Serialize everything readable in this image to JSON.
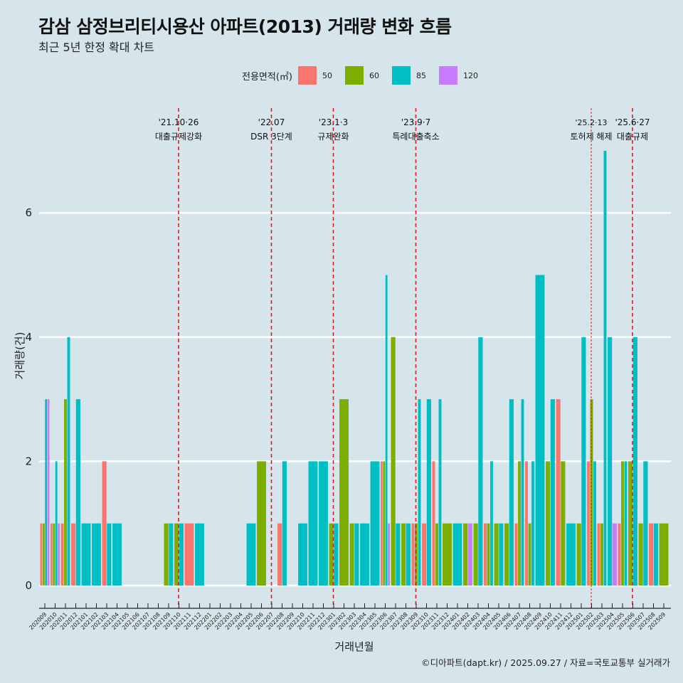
{
  "header": {
    "title": "감삼 삼정브리티시용산 아파트(2013) 거래량 변화 흐름",
    "subtitle": "최근 5년 한정 확대 차트"
  },
  "legend": {
    "title": "전용면적(㎡)",
    "items": [
      {
        "label": "50",
        "color": "#F8766D"
      },
      {
        "label": "60",
        "color": "#7CAE00"
      },
      {
        "label": "85",
        "color": "#00BFC4"
      },
      {
        "label": "120",
        "color": "#C77CFF"
      }
    ]
  },
  "footer": "©디아파트(dapt.kr) / 2025.09.27 / 자료=국토교통부 실거래가",
  "chart_data": {
    "type": "bar",
    "title": "감삼 삼정브리티시용산 아파트(2013) 거래량 변화 흐름",
    "subtitle": "최근 5년 한정 확대 차트",
    "xlabel": "거래년월",
    "ylabel": "거래량(건)",
    "ylim": [
      0,
      7.7
    ],
    "yticks": [
      0,
      2,
      4,
      6
    ],
    "grid": true,
    "legend_position": "top",
    "bar_mode": "dodge",
    "categories": [
      "202009",
      "202010",
      "202011",
      "202012",
      "202101",
      "202102",
      "202103",
      "202104",
      "202105",
      "202106",
      "202107",
      "202108",
      "202109",
      "202110",
      "202111",
      "202112",
      "202201",
      "202202",
      "202203",
      "202204",
      "202205",
      "202206",
      "202207",
      "202208",
      "202209",
      "202210",
      "202211",
      "202212",
      "202301",
      "202302",
      "202303",
      "202304",
      "202305",
      "202306",
      "202307",
      "202308",
      "202309",
      "202310",
      "202311",
      "202312",
      "202401",
      "202402",
      "202403",
      "202404",
      "202405",
      "202406",
      "202407",
      "202408",
      "202409",
      "202410",
      "202411",
      "202412",
      "202501",
      "202502",
      "202503",
      "202504",
      "202505",
      "202506",
      "202507",
      "202508",
      "202509"
    ],
    "series": [
      {
        "name": "50",
        "color": "#F8766D",
        "values": [
          1,
          1,
          1,
          1,
          0,
          0,
          2,
          0,
          0,
          0,
          0,
          0,
          0,
          0,
          1,
          0,
          0,
          0,
          0,
          0,
          0,
          0,
          0,
          1,
          0,
          0,
          0,
          0,
          0,
          0,
          0,
          0,
          0,
          2,
          0,
          0,
          1,
          1,
          2,
          0,
          0,
          0,
          0,
          1,
          0,
          0,
          1,
          2,
          0,
          0,
          3,
          0,
          0,
          2,
          1,
          0,
          1,
          0,
          0,
          1,
          0
        ]
      },
      {
        "name": "60",
        "color": "#7CAE00",
        "values": [
          1,
          1,
          3,
          0,
          0,
          0,
          0,
          0,
          0,
          0,
          0,
          0,
          1,
          1,
          0,
          0,
          0,
          0,
          0,
          0,
          0,
          2,
          0,
          0,
          0,
          0,
          0,
          0,
          1,
          3,
          1,
          0,
          0,
          2,
          4,
          1,
          1,
          0,
          1,
          1,
          0,
          1,
          1,
          1,
          1,
          1,
          2,
          1,
          0,
          2,
          2,
          0,
          1,
          3,
          1,
          0,
          2,
          2,
          1,
          0,
          1
        ]
      },
      {
        "name": "85",
        "color": "#00BFC4",
        "values": [
          3,
          2,
          4,
          3,
          1,
          1,
          1,
          1,
          0,
          0,
          0,
          0,
          1,
          1,
          0,
          1,
          0,
          0,
          0,
          0,
          1,
          0,
          0,
          2,
          0,
          1,
          2,
          2,
          1,
          0,
          1,
          1,
          2,
          5,
          1,
          1,
          3,
          3,
          3,
          0,
          1,
          0,
          4,
          2,
          1,
          3,
          3,
          2,
          5,
          3,
          0,
          1,
          4,
          2,
          7,
          4,
          2,
          4,
          2,
          1,
          0
        ]
      },
      {
        "name": "120",
        "color": "#C77CFF",
        "values": [
          3,
          1,
          0,
          0,
          0,
          0,
          0,
          0,
          0,
          0,
          0,
          0,
          0,
          0,
          0,
          0,
          0,
          0,
          0,
          0,
          0,
          0,
          0,
          0,
          0,
          0,
          0,
          0,
          0,
          0,
          0,
          0,
          0,
          1,
          0,
          0,
          0,
          0,
          0,
          0,
          0,
          1,
          0,
          0,
          0,
          0,
          0,
          0,
          0,
          0,
          0,
          0,
          0,
          0,
          0,
          1,
          0,
          0,
          0,
          0,
          0
        ]
      }
    ],
    "annotations": [
      {
        "x": "202110",
        "date": "'21.10·26",
        "label": "대출규제강화",
        "style": "dashed"
      },
      {
        "x": "202207",
        "date": "'22.07",
        "label": "DSR 3단계",
        "style": "dashed"
      },
      {
        "x": "202301",
        "date": "'23.1·3",
        "label": "규제완화",
        "style": "dashed"
      },
      {
        "x": "202309",
        "date": "'23.9·7",
        "label": "특례대출축소",
        "style": "dashed"
      },
      {
        "x": "202502",
        "date": "'25.2·13",
        "label": "토허제 해제",
        "style": "dotted"
      },
      {
        "x": "202506",
        "date": "'25.6·27",
        "label": "대출규제",
        "style": "dashed"
      }
    ]
  }
}
